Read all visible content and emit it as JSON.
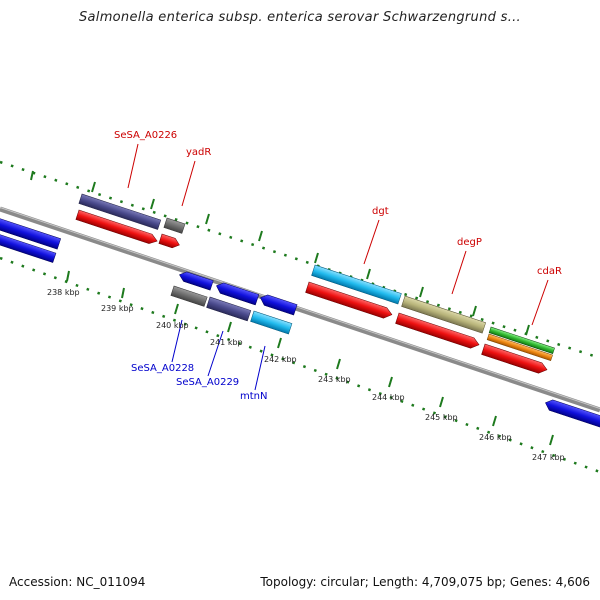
{
  "title": "Salmonella enterica subsp. enterica serovar Schwarzengrund s...",
  "footer": {
    "accession": "Accession: NC_011094",
    "topology": "Topology: circular; Length: 4,709,075 bp; Genes: 4,606"
  },
  "scale_labels": [
    "238 kbp",
    "239 kbp",
    "240 kbp",
    "241 kbp",
    "242 kbp",
    "243 kbp",
    "244 kbp",
    "245 kbp",
    "246 kbp",
    "247 kbp"
  ],
  "labels": {
    "SeSA_A0226": "SeSA_A0226",
    "yadR": "yadR",
    "dgt": "dgt",
    "degP": "degP",
    "cdaR": "cdaR",
    "SeSA_A0228": "SeSA_A0228",
    "SeSA_A0229": "SeSA_A0229",
    "mtnN": "mtnN"
  },
  "colors": {
    "backbone": "#8a8a8a",
    "tick": "#1e7a1e",
    "forward_label": "#cc0000",
    "reverse_label": "#0000cc",
    "cds_red": "#ee1111",
    "cds_blue": "#1111dd",
    "cds_purple": "#4a4a8c",
    "cds_gray": "#6e6e6e",
    "cds_cyan": "#22bbee",
    "cds_khaki": "#b8b47a",
    "cds_green": "#33bb33",
    "cds_orange": "#ee8811"
  }
}
